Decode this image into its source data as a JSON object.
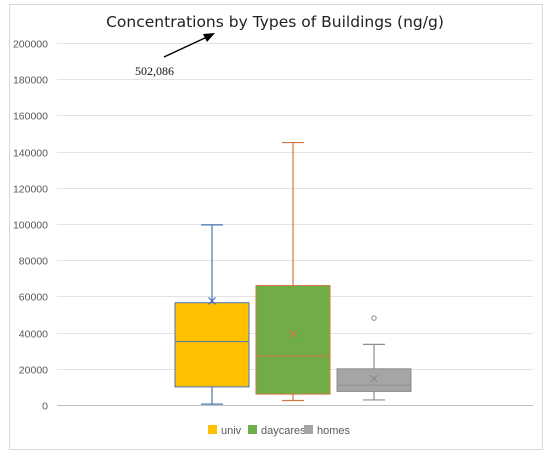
{
  "chart_data": {
    "type": "box",
    "title": "Concentrations by Types of Buildings (ng/g)",
    "ylim": [
      0,
      200000
    ],
    "yticks": [
      "0",
      "20000",
      "40000",
      "60000",
      "80000",
      "100000",
      "120000",
      "140000",
      "160000",
      "180000",
      "200000"
    ],
    "grid": true,
    "legend_position": "bottom",
    "annotation": {
      "text": "502,086"
    },
    "series": [
      {
        "name": "univ",
        "color": "#ffc000",
        "line": "#4a74b5",
        "min": 500,
        "q1": 10000,
        "median": 35000,
        "q3": 56500,
        "max": 99500,
        "mean": 57500,
        "outliers": []
      },
      {
        "name": "daycares",
        "color": "#70ad47",
        "line": "#d1773f",
        "min": 2500,
        "q1": 6000,
        "median": 27000,
        "q3": 66000,
        "max": 145000,
        "mean": 39500,
        "outliers": []
      },
      {
        "name": "homes",
        "color": "#a5a5a5",
        "line": "#8c8c8c",
        "min": 2800,
        "q1": 7500,
        "median": 11000,
        "q3": 20000,
        "max": 33500,
        "mean": 14500,
        "outliers": [
          48000
        ]
      }
    ]
  }
}
